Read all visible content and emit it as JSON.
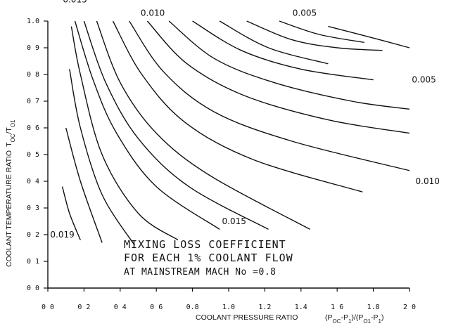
{
  "chart_data": {
    "type": "line",
    "title": "",
    "xlabel": "COOLANT PRESSURE RATIO",
    "xlabel_formula": "(P",
    "xlabel_sub1": "OC",
    "xlabel_mid": "-P",
    "xlabel_sub2": "1",
    "xlabel_mid2": ")/(P",
    "xlabel_sub3": "O1",
    "xlabel_mid3": "-P",
    "xlabel_sub4": "1",
    "xlabel_end": ")",
    "ylabel": "COOLANT TEMPERATURE RATIO",
    "ylabel_symbol": "T",
    "ylabel_sub1": "OC",
    "ylabel_mid": "/T",
    "ylabel_sub2": "O1",
    "xlim": [
      0.0,
      2.0
    ],
    "ylim": [
      0.0,
      1.0
    ],
    "x_ticks": [
      "0 0",
      "0 2",
      "0 4",
      "0 6",
      "0.8",
      "1.0",
      "1.2",
      "1.4",
      "1 6",
      "1.8",
      "2 0"
    ],
    "y_ticks": [
      "0 0",
      "0 1",
      "0 2",
      "0 3",
      "0 4",
      "0 5",
      "0 6",
      "0 7",
      "0 8",
      "0 9",
      "1.0"
    ],
    "grid": false,
    "annotation": {
      "line1": "MIXING LOSS COEFFICIENT",
      "line2": "FOR EACH 1% COOLANT FLOW",
      "line3": "AT MAINSTREAM MACH No =0.8"
    },
    "contour_labels": [
      {
        "text": "0.015",
        "x": 0.15,
        "y": 1.08
      },
      {
        "text": "0.010",
        "x": 0.58,
        "y": 1.03
      },
      {
        "text": "0.005",
        "x": 1.42,
        "y": 1.03
      },
      {
        "text": "0.005",
        "x": 2.08,
        "y": 0.78
      },
      {
        "text": "0.010",
        "x": 2.1,
        "y": 0.4
      },
      {
        "text": "0.015",
        "x": 1.03,
        "y": 0.25
      },
      {
        "text": "0.019",
        "x": 0.08,
        "y": 0.2
      }
    ],
    "series": [
      {
        "points": [
          [
            0.08,
            0.38
          ],
          [
            0.12,
            0.28
          ],
          [
            0.18,
            0.18
          ]
        ]
      },
      {
        "points": [
          [
            0.1,
            0.6
          ],
          [
            0.18,
            0.4
          ],
          [
            0.3,
            0.17
          ]
        ]
      },
      {
        "points": [
          [
            0.12,
            0.82
          ],
          [
            0.18,
            0.6
          ],
          [
            0.3,
            0.35
          ],
          [
            0.48,
            0.16
          ]
        ]
      },
      {
        "points": [
          [
            0.13,
            0.98
          ],
          [
            0.18,
            0.8
          ],
          [
            0.3,
            0.5
          ],
          [
            0.5,
            0.28
          ],
          [
            0.72,
            0.18
          ]
        ]
      },
      {
        "points": [
          [
            0.15,
            1.0
          ],
          [
            0.25,
            0.78
          ],
          [
            0.38,
            0.58
          ],
          [
            0.6,
            0.38
          ],
          [
            0.95,
            0.22
          ]
        ]
      },
      {
        "points": [
          [
            0.2,
            1.0
          ],
          [
            0.32,
            0.77
          ],
          [
            0.5,
            0.56
          ],
          [
            0.78,
            0.38
          ],
          [
            1.22,
            0.22
          ]
        ]
      },
      {
        "points": [
          [
            0.27,
            1.0
          ],
          [
            0.4,
            0.77
          ],
          [
            0.6,
            0.58
          ],
          [
            0.9,
            0.42
          ],
          [
            1.45,
            0.22
          ]
        ]
      },
      {
        "points": [
          [
            0.36,
            1.0
          ],
          [
            0.52,
            0.8
          ],
          [
            0.76,
            0.62
          ],
          [
            1.14,
            0.48
          ],
          [
            1.74,
            0.36
          ]
        ]
      },
      {
        "points": [
          [
            0.45,
            1.0
          ],
          [
            0.64,
            0.81
          ],
          [
            0.92,
            0.66
          ],
          [
            1.35,
            0.55
          ],
          [
            2.0,
            0.44
          ]
        ]
      },
      {
        "points": [
          [
            0.55,
            1.0
          ],
          [
            0.77,
            0.84
          ],
          [
            1.09,
            0.72
          ],
          [
            1.55,
            0.63
          ],
          [
            2.0,
            0.58
          ]
        ]
      },
      {
        "points": [
          [
            0.67,
            1.0
          ],
          [
            0.92,
            0.86
          ],
          [
            1.25,
            0.77
          ],
          [
            1.68,
            0.7
          ],
          [
            2.0,
            0.67
          ]
        ]
      },
      {
        "points": [
          [
            0.8,
            1.0
          ],
          [
            1.07,
            0.89
          ],
          [
            1.4,
            0.82
          ],
          [
            1.8,
            0.78
          ]
        ]
      },
      {
        "points": [
          [
            0.95,
            1.0
          ],
          [
            1.22,
            0.9
          ],
          [
            1.55,
            0.84
          ]
        ]
      },
      {
        "points": [
          [
            1.1,
            1.0
          ],
          [
            1.35,
            0.93
          ],
          [
            1.6,
            0.9
          ],
          [
            1.85,
            0.89
          ]
        ]
      },
      {
        "points": [
          [
            1.28,
            1.0
          ],
          [
            1.5,
            0.95
          ],
          [
            1.75,
            0.92
          ]
        ]
      },
      {
        "points": [
          [
            1.55,
            0.98
          ],
          [
            1.78,
            0.94
          ],
          [
            2.0,
            0.9
          ]
        ]
      }
    ]
  }
}
